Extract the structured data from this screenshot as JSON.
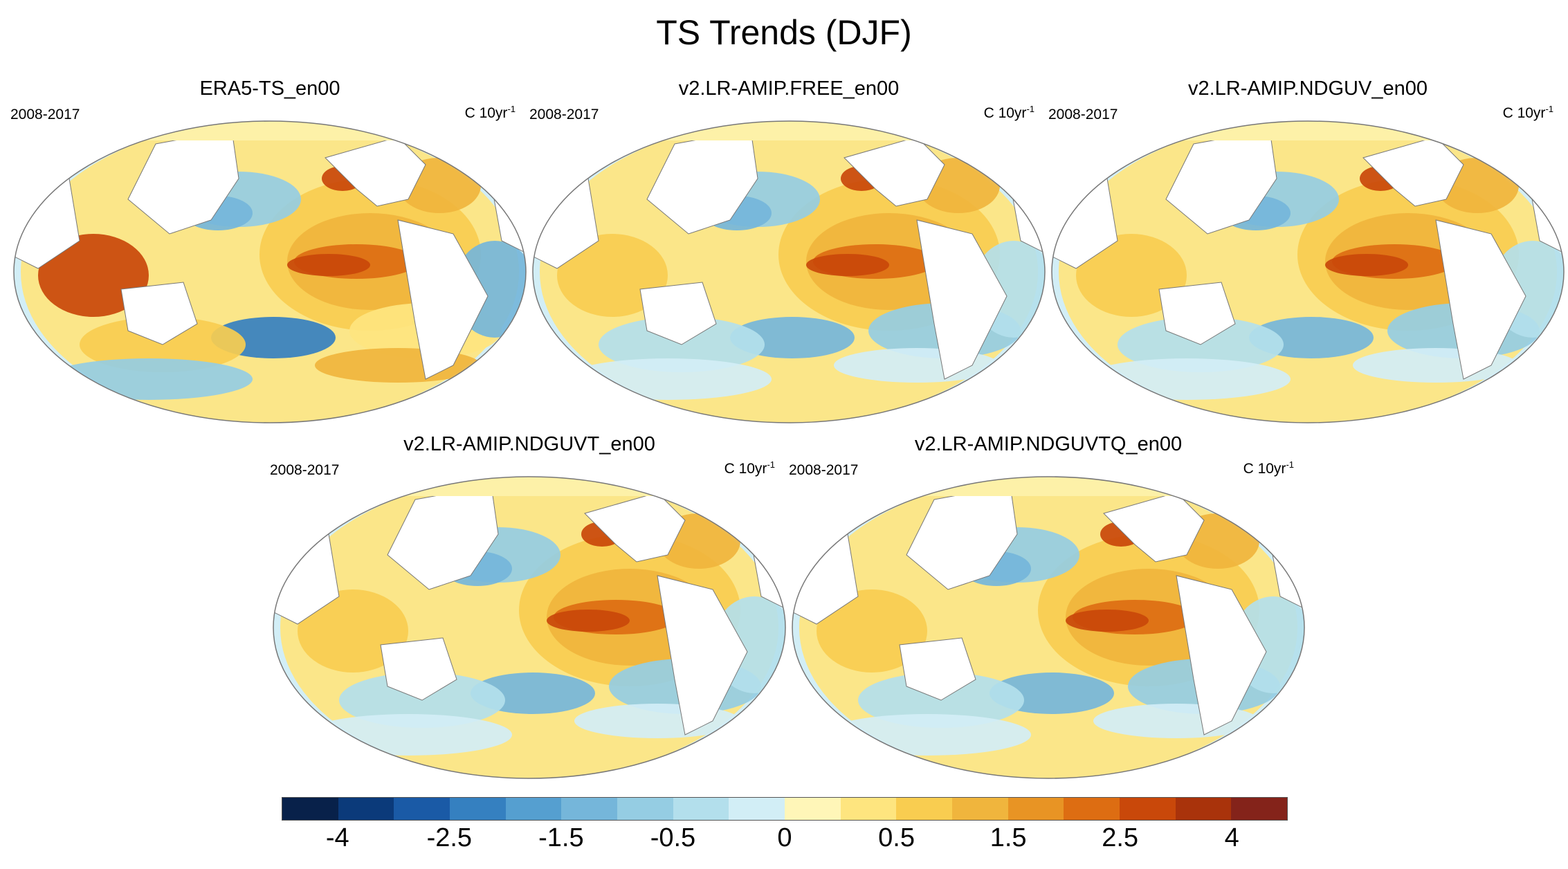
{
  "figure": {
    "title": "TS Trends (DJF)"
  },
  "panels": [
    {
      "title": "ERA5-TS_en00",
      "period": "2008-2017",
      "units_base": "C 10yr",
      "units_exp": "-1"
    },
    {
      "title": "v2.LR-AMIP.FREE_en00",
      "period": "2008-2017",
      "units_base": "C 10yr",
      "units_exp": "-1"
    },
    {
      "title": "v2.LR-AMIP.NDGUV_en00",
      "period": "2008-2017",
      "units_base": "C 10yr",
      "units_exp": "-1"
    },
    {
      "title": "v2.LR-AMIP.NDGUVT_en00",
      "period": "2008-2017",
      "units_base": "C 10yr",
      "units_exp": "-1"
    },
    {
      "title": "v2.LR-AMIP.NDGUVTQ_en00",
      "period": "2008-2017",
      "units_base": "C 10yr",
      "units_exp": "-1"
    }
  ],
  "colorbar": {
    "colors": [
      "#08214a",
      "#0b3a7a",
      "#1a5aa6",
      "#3580c0",
      "#559fd0",
      "#75b6da",
      "#95cde3",
      "#b3dfec",
      "#d2eef6",
      "#fff6b8",
      "#fee57f",
      "#f9cd50",
      "#f0b53d",
      "#e89424",
      "#dd6d12",
      "#c9480a",
      "#a9330b",
      "#84231a"
    ],
    "labels": [
      "-4",
      "-2.5",
      "-1.5",
      "-0.5",
      "0",
      "0.5",
      "1.5",
      "2.5",
      "4"
    ]
  }
}
